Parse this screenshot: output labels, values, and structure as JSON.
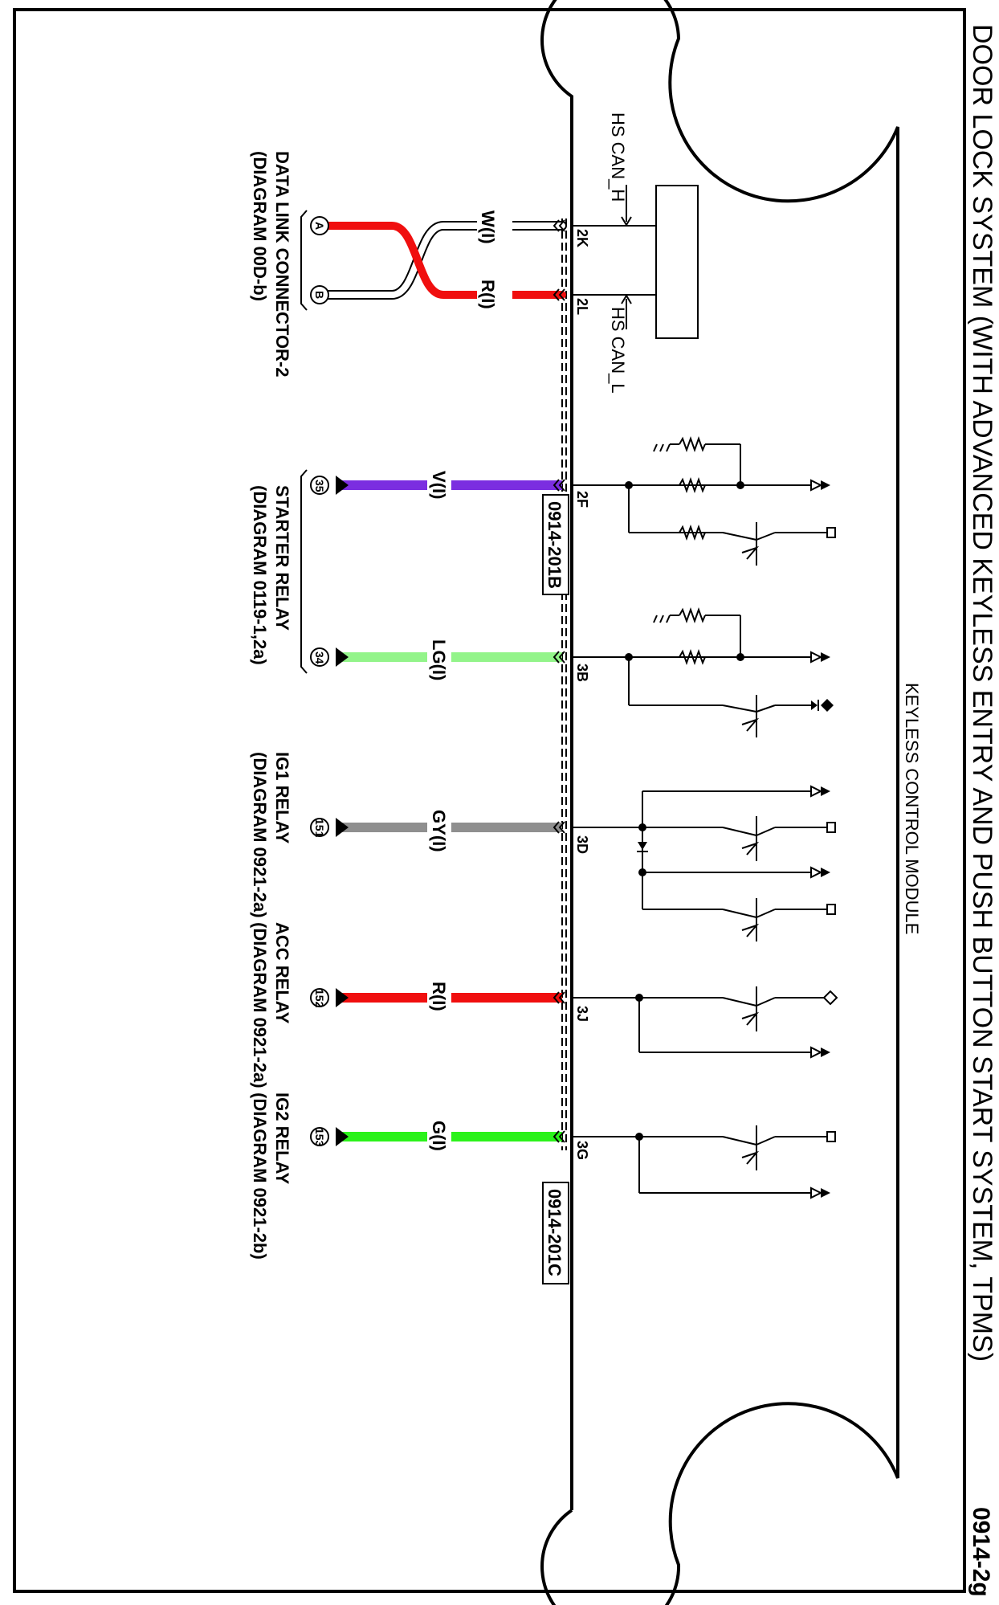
{
  "diagram": {
    "title": "DOOR LOCK SYSTEM (WITH ADVANCED KEYLESS ENTRY AND PUSH BUTTON START SYSTEM, TPMS)",
    "code": "0914-2g",
    "module_label": "KEYLESS CONTROL MODULE",
    "signals": {
      "can_h": "HS CAN_H",
      "can_l": "HS CAN_L"
    },
    "connector_refs": {
      "upper": "0914-201B",
      "lower": "0914-201C"
    },
    "pins": {
      "p2K": "2K",
      "p2L": "2L",
      "p2F": "2F",
      "p3B": "3B",
      "p3D": "3D",
      "p3J": "3J",
      "p3G": "3G"
    },
    "wires": {
      "w_w": "W(I)",
      "w_r1": "R(I)",
      "w_v": "V(I)",
      "w_lg": "LG(I)",
      "w_gy": "GY(I)",
      "w_r2": "R(I)",
      "w_g": "G(I)"
    },
    "endpoints": {
      "a": "A",
      "b": "B",
      "c35": "35",
      "c34": "34",
      "c151": "151",
      "c152": "152",
      "c153": "153"
    },
    "destinations": {
      "dlc_name": "DATA LINK CONNECTOR-2",
      "dlc_ref": "(DIAGRAM 00D-b)",
      "starter_name": "STARTER RELAY",
      "starter_ref": "(DIAGRAM 0119-1,2a)",
      "ig1_name": "IG1 RELAY",
      "ig1_ref": "(DIAGRAM 0921-2a)",
      "acc_name": "ACC RELAY",
      "acc_ref": "(DIAGRAM 0921-2a)",
      "ig2_name": "IG2 RELAY",
      "ig2_ref": "(DIAGRAM 0921-2b)"
    },
    "colors": {
      "violet": "#7b2ee0",
      "light_green": "#93f48a",
      "gray": "#8f8f8f",
      "red": "#f00f0f",
      "green": "#2bf21b",
      "white": "#ffffff"
    }
  }
}
